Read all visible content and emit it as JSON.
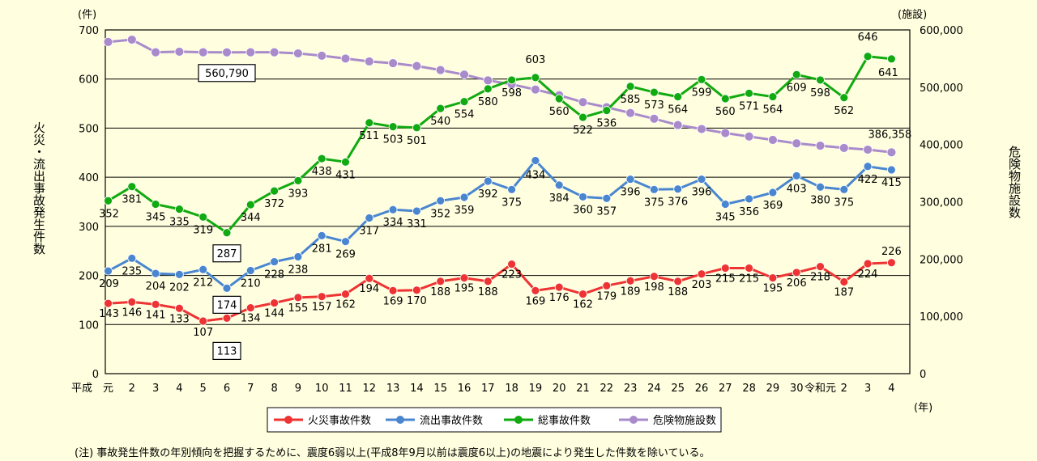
{
  "chart_data": {
    "type": "line",
    "categories": [
      "元",
      "2",
      "3",
      "4",
      "5",
      "6",
      "7",
      "8",
      "9",
      "10",
      "11",
      "12",
      "13",
      "14",
      "15",
      "16",
      "17",
      "18",
      "19",
      "20",
      "21",
      "22",
      "23",
      "24",
      "25",
      "26",
      "27",
      "28",
      "29",
      "30",
      "令和元",
      "2",
      "3",
      "4"
    ],
    "era_start_label": "平成",
    "x_unit_label": "(年)",
    "left_axis": {
      "unit_label": "(件)",
      "title": "火災・流出事故発生件数",
      "ylim": [
        0,
        700
      ],
      "ticks": [
        0,
        100,
        200,
        300,
        400,
        500,
        600,
        700
      ]
    },
    "right_axis": {
      "unit_label": "(施設)",
      "title": "危険物施設数",
      "ylim": [
        0,
        600000
      ],
      "ticks": [
        0,
        100000,
        200000,
        300000,
        400000,
        500000,
        600000
      ],
      "tick_labels": [
        "0",
        "100,000",
        "200,000",
        "300,000",
        "400,000",
        "500,000",
        "600,000"
      ]
    },
    "grid": true,
    "legend_position": "bottom",
    "series": [
      {
        "name": "火災事故件数",
        "color": "#ee3333",
        "axis": "left",
        "values": [
          143,
          146,
          141,
          133,
          107,
          113,
          134,
          144,
          155,
          157,
          162,
          194,
          169,
          170,
          188,
          195,
          188,
          223,
          169,
          176,
          162,
          179,
          189,
          198,
          188,
          203,
          215,
          215,
          195,
          206,
          218,
          187,
          224,
          226
        ],
        "boxed_index": 5
      },
      {
        "name": "流出事故件数",
        "color": "#4a86d0",
        "axis": "left",
        "values": [
          209,
          235,
          204,
          202,
          212,
          174,
          210,
          228,
          238,
          281,
          269,
          317,
          334,
          331,
          352,
          359,
          392,
          375,
          434,
          384,
          360,
          357,
          396,
          375,
          376,
          396,
          345,
          356,
          369,
          403,
          380,
          375,
          422,
          415
        ],
        "boxed_index": 5
      },
      {
        "name": "総事故件数",
        "color": "#11aa11",
        "axis": "left",
        "values": [
          352,
          381,
          345,
          335,
          319,
          287,
          344,
          372,
          393,
          438,
          431,
          511,
          503,
          501,
          540,
          554,
          580,
          598,
          603,
          560,
          522,
          536,
          585,
          573,
          564,
          599,
          560,
          571,
          564,
          609,
          598,
          562,
          646,
          641
        ],
        "boxed_index": 5
      },
      {
        "name": "危険物施設数",
        "color": "#a98bcc",
        "axis": "right",
        "values": [
          579000,
          583000,
          561000,
          562000,
          561000,
          560790,
          561000,
          561000,
          559000,
          555000,
          550000,
          545000,
          542000,
          537000,
          530000,
          522000,
          512000,
          505000,
          496000,
          486000,
          474000,
          465000,
          455000,
          445000,
          434000,
          427000,
          420000,
          414000,
          408000,
          402000,
          398000,
          394000,
          391000,
          386358
        ],
        "labels": {
          "5": "560,790",
          "33": "386,358"
        },
        "boxed_index": 5
      }
    ],
    "footnote": "(注) 事故発生件数の年別傾向を把握するために、震度6弱以上(平成8年9月以前は震度6以上)の地震により発生した件数を除いている。"
  }
}
